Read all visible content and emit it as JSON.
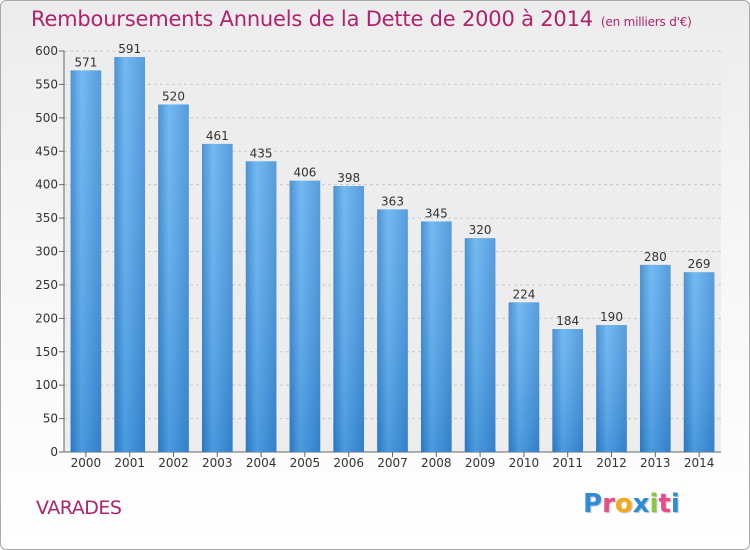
{
  "chart_data": {
    "type": "bar",
    "title": "Remboursements Annuels de la Dette de 2000 à 2014",
    "unit": "(en milliers d'€)",
    "categories": [
      "2000",
      "2001",
      "2002",
      "2003",
      "2004",
      "2005",
      "2006",
      "2007",
      "2008",
      "2009",
      "2010",
      "2011",
      "2012",
      "2013",
      "2014"
    ],
    "values": [
      571,
      591,
      520,
      461,
      435,
      406,
      398,
      363,
      345,
      320,
      224,
      184,
      190,
      280,
      269
    ],
    "ylim": [
      0,
      600
    ],
    "yticks": [
      0,
      50,
      100,
      150,
      200,
      250,
      300,
      350,
      400,
      450,
      500,
      550,
      600
    ],
    "grid": true,
    "bar_color": "#4a9ee0"
  },
  "commune": "VARADES",
  "brand": {
    "letters": [
      "P",
      "r",
      "o",
      "x",
      "i",
      "t",
      "i"
    ],
    "colors": [
      "#2e8bd6",
      "#e84c8a",
      "#f6a81c",
      "#2e8bd6",
      "#8cc63e",
      "#e84c8a",
      "#2e8bd6"
    ]
  }
}
